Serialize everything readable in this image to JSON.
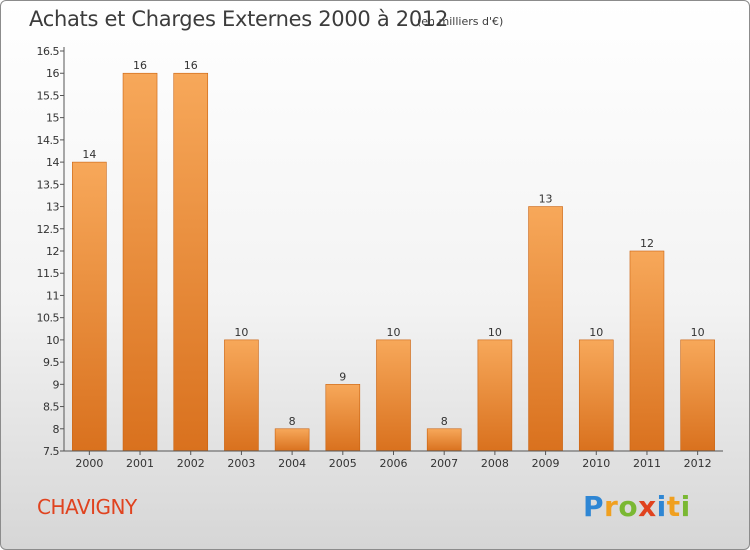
{
  "header": {
    "title": "Achats et Charges Externes 2000 à 2012",
    "subtitle": "(en milliers d'€)"
  },
  "footer": {
    "commune": "CHAVIGNY",
    "brand_letters": [
      {
        "char": "P",
        "color": "#2e86d4"
      },
      {
        "char": "r",
        "color": "#f0a020"
      },
      {
        "char": "o",
        "color": "#7ab833"
      },
      {
        "char": "x",
        "color": "#e0431f"
      },
      {
        "char": "i",
        "color": "#2e86d4"
      },
      {
        "char": "t",
        "color": "#f0a020"
      },
      {
        "char": "i",
        "color": "#7ab833"
      }
    ]
  },
  "colors": {
    "bar_top": "#f7a85a",
    "bar_bottom": "#d9711e",
    "bar_edge": "#c96210",
    "axis": "#555555",
    "commune": "#e0431f"
  },
  "chart_data": {
    "type": "bar",
    "categories": [
      "2000",
      "2001",
      "2002",
      "2003",
      "2004",
      "2005",
      "2006",
      "2007",
      "2008",
      "2009",
      "2010",
      "2011",
      "2012"
    ],
    "values": [
      14,
      16,
      16,
      10,
      8,
      9,
      10,
      8,
      10,
      13,
      10,
      12,
      10
    ],
    "ylim": [
      7.5,
      16.5
    ],
    "yticks": [
      7.5,
      8,
      8.5,
      9,
      9.5,
      10,
      10.5,
      11,
      11.5,
      12,
      12.5,
      13,
      13.5,
      14,
      14.5,
      15,
      15.5,
      16,
      16.5
    ],
    "data_labels": true,
    "grid": false
  }
}
